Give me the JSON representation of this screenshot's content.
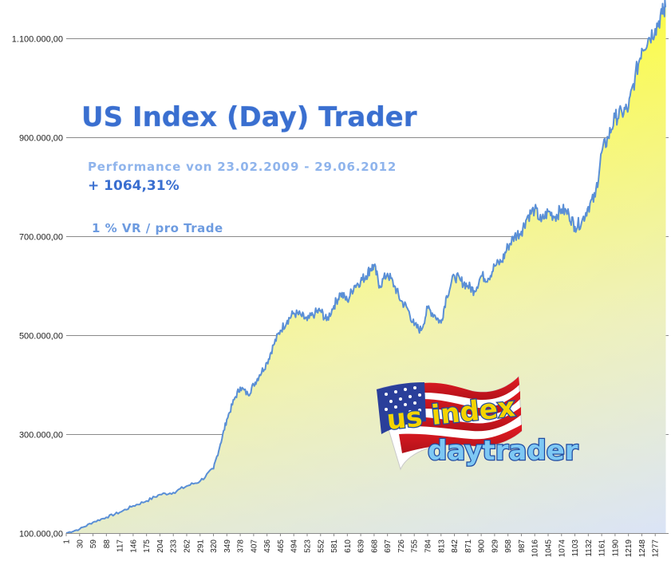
{
  "chart_data": {
    "type": "area",
    "title": "US Index (Day) Trader",
    "annotations": [
      "Performance  von  23.02.2009 - 29.06.2012",
      "+ 1064,31%",
      "1 % VR / pro Trade"
    ],
    "logo_text": "us index daytrader",
    "ylim": [
      100000,
      1170000
    ],
    "y_ticks": [
      {
        "value": 100000,
        "label": "100.000,00"
      },
      {
        "value": 300000,
        "label": "300.000,00"
      },
      {
        "value": 500000,
        "label": "500.000,00"
      },
      {
        "value": 700000,
        "label": "700.000,00"
      },
      {
        "value": 900000,
        "label": "900.000,00"
      },
      {
        "value": 1100000,
        "label": "1.100.000,00"
      }
    ],
    "xlim": [
      1,
      1306
    ],
    "x_ticks": [
      1,
      30,
      59,
      88,
      117,
      146,
      175,
      204,
      233,
      262,
      291,
      320,
      349,
      378,
      407,
      436,
      465,
      494,
      523,
      552,
      581,
      610,
      639,
      668,
      697,
      726,
      755,
      784,
      813,
      842,
      871,
      900,
      929,
      958,
      987,
      1016,
      1045,
      1074,
      1103,
      1132,
      1161,
      1190,
      1219,
      1248,
      1277
    ],
    "grid": "horizontal",
    "legend": "none",
    "colors": {
      "fill_top": "#ffff00",
      "fill_bottom": "#dde6f7",
      "line": "#5a8fd6"
    },
    "series": [
      {
        "x": [
          1,
          30,
          59,
          88,
          117,
          146,
          175,
          204,
          233,
          262,
          291,
          320,
          335,
          349,
          365,
          378,
          395,
          407,
          420,
          436,
          450,
          465,
          480,
          494,
          510,
          523,
          540,
          552,
          565,
          581,
          595,
          610,
          625,
          639,
          650,
          660,
          668,
          680,
          697,
          712,
          726,
          740,
          755,
          770,
          784,
          800,
          813,
          825,
          842,
          856,
          871,
          885,
          900,
          915,
          929,
          945,
          958,
          972,
          987,
          1000,
          1016,
          1030,
          1045,
          1060,
          1074,
          1090,
          1103,
          1118,
          1132,
          1147,
          1161,
          1175,
          1190,
          1205,
          1219,
          1233,
          1248,
          1262,
          1277,
          1292,
          1300
        ],
        "y": [
          100000,
          108000,
          122000,
          132000,
          142000,
          155000,
          165000,
          178000,
          182000,
          195000,
          205000,
          230000,
          280000,
          330000,
          370000,
          395000,
          380000,
          400000,
          420000,
          445000,
          480000,
          510000,
          530000,
          545000,
          540000,
          530000,
          545000,
          550000,
          530000,
          560000,
          585000,
          570000,
          600000,
          610000,
          620000,
          635000,
          640000,
          600000,
          625000,
          600000,
          570000,
          555000,
          520000,
          510000,
          555000,
          540000,
          525000,
          580000,
          620000,
          610000,
          600000,
          590000,
          620000,
          615000,
          640000,
          650000,
          680000,
          700000,
          710000,
          740000,
          755000,
          730000,
          750000,
          740000,
          755000,
          745000,
          720000,
          730000,
          760000,
          780000,
          870000,
          900000,
          940000,
          950000,
          960000,
          1020000,
          1080000,
          1100000,
          1120000,
          1150000,
          1165000
        ]
      }
    ]
  }
}
